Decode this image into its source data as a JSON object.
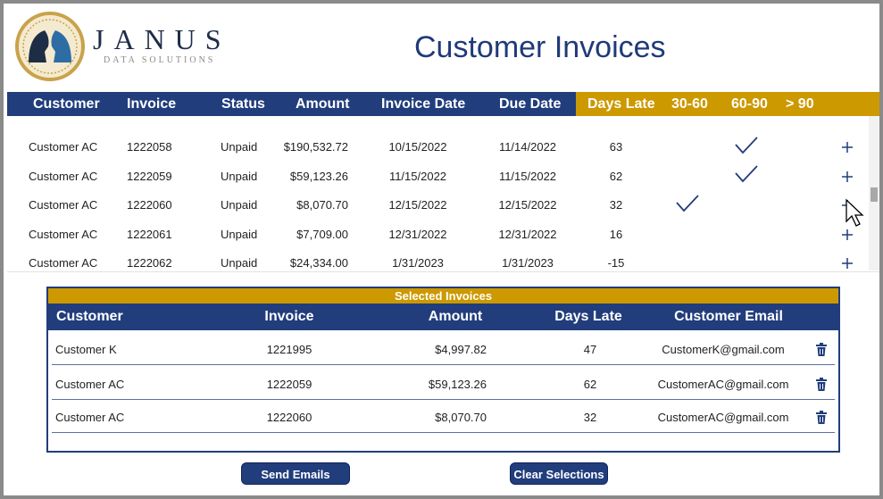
{
  "logo": {
    "name": "JANUS",
    "tagline": "DATA SOLUTIONS"
  },
  "title": "Customer Invoices",
  "invoices": {
    "columns": [
      "Customer",
      "Invoice",
      "Status",
      "Amount",
      "Invoice Date",
      "Due Date",
      "Days Late",
      "30-60",
      "60-90",
      "> 90"
    ],
    "rows": [
      [
        "Customer AC",
        "1222058",
        "Unpaid",
        "$190,532.72",
        "10/15/2022",
        "11/14/2022",
        "63"
      ],
      [
        "Customer AC",
        "1222059",
        "Unpaid",
        "$59,123.26",
        "11/15/2022",
        "11/15/2022",
        "62"
      ],
      [
        "Customer AC",
        "1222060",
        "Unpaid",
        "$8,070.70",
        "12/15/2022",
        "12/15/2022",
        "32"
      ],
      [
        "Customer AC",
        "1222061",
        "Unpaid",
        "$7,709.00",
        "12/31/2022",
        "12/31/2022",
        "16"
      ],
      [
        "Customer AC",
        "1222062",
        "Unpaid",
        "$24,334.00",
        "1/31/2023",
        "1/31/2023",
        "-15"
      ]
    ]
  },
  "selected": {
    "title": "Selected Invoices",
    "columns": [
      "Customer",
      "Invoice",
      "Amount",
      "Days Late",
      "Customer Email"
    ],
    "rows": [
      [
        "Customer K",
        "1221995",
        "$4,997.82",
        "47",
        "CustomerK@gmail.com"
      ],
      [
        "Customer AC",
        "1222059",
        "$59,123.26",
        "62",
        "CustomerAC@gmail.com"
      ],
      [
        "Customer AC",
        "1222060",
        "$8,070.70",
        "32",
        "CustomerAC@gmail.com"
      ]
    ]
  },
  "buttons": [
    "Send Emails",
    "Clear Selections"
  ]
}
